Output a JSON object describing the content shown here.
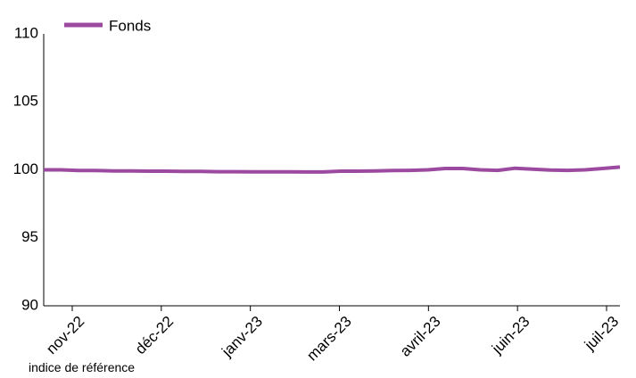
{
  "chart_data": {
    "type": "line",
    "x_tick_labels": [
      "nov-22",
      "déc-22",
      "janv-23",
      "mars-23",
      "avril-23",
      "juin-23",
      "juil-23"
    ],
    "ylim": [
      90,
      110
    ],
    "y_ticks": [
      90,
      95,
      100,
      105,
      110
    ],
    "grid": false,
    "legend_position": "top-left",
    "series": [
      {
        "name": "Fonds",
        "color": "#9b4a9f",
        "values": [
          100.0,
          100.0,
          99.95,
          99.95,
          99.92,
          99.92,
          99.9,
          99.9,
          99.88,
          99.88,
          99.86,
          99.86,
          99.85,
          99.85,
          99.85,
          99.84,
          99.84,
          99.9,
          99.9,
          99.92,
          99.95,
          99.96,
          100.0,
          100.1,
          100.1,
          100.0,
          99.96,
          100.12,
          100.05,
          99.98,
          99.96,
          100.0,
          100.1,
          100.2
        ]
      }
    ],
    "footnote": "indice de référence"
  }
}
